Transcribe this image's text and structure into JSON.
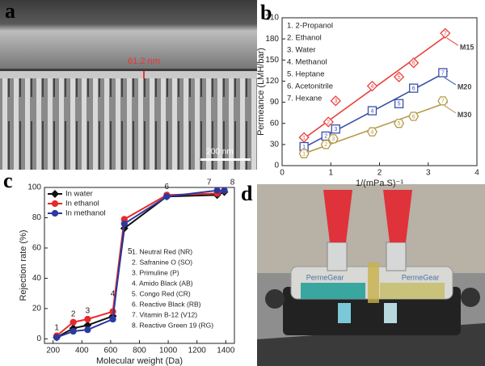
{
  "panel_labels": [
    "a",
    "b",
    "c",
    "d"
  ],
  "sem_image": {
    "thickness_label": "61.2 nm",
    "scale_bar_label": "200 nm"
  },
  "photo": {
    "device_labels": [
      "PermeGear",
      "PermeGear"
    ]
  },
  "chart_data": [
    {
      "type": "scatter",
      "x_label": "1/(mPa.S)⁻¹",
      "y_label": "Permeance (LMH/bar)",
      "xlim": [
        0,
        4
      ],
      "xticks": [
        0,
        1,
        2,
        3,
        4
      ],
      "ylim": [
        0,
        210
      ],
      "yticks": [
        0,
        30,
        60,
        90,
        120,
        150,
        180,
        210
      ],
      "annotations": [
        "1. 2-Propanol",
        "2. Ethanol",
        "3. Water",
        "4. Methanol",
        "5. Heptane",
        "6. Acetonitrile",
        "7. Hexane"
      ],
      "point_labels": [
        "1",
        "2",
        "3",
        "4",
        "5",
        "6",
        "7"
      ],
      "series": [
        {
          "name": "M15",
          "color": "#e8413c",
          "marker": "diamond",
          "x": [
            0.45,
            0.95,
            1.1,
            1.85,
            2.4,
            2.7,
            3.35
          ],
          "values": [
            40,
            62,
            92,
            113,
            126,
            146,
            188
          ],
          "trendline": {
            "x": [
              0.4,
              3.4
            ],
            "y": [
              36,
              186
            ]
          }
        },
        {
          "name": "M20",
          "color": "#3a4fa8",
          "marker": "square",
          "x": [
            0.45,
            0.9,
            1.1,
            1.85,
            2.4,
            2.7,
            3.3
          ],
          "values": [
            27,
            42,
            52,
            78,
            88,
            110,
            132
          ],
          "trendline": {
            "x": [
              0.4,
              3.4
            ],
            "y": [
              24,
              134
            ]
          }
        },
        {
          "name": "M30",
          "color": "#b49a4a",
          "marker": "hexagon",
          "x": [
            0.45,
            0.9,
            1.05,
            1.85,
            2.4,
            2.7,
            3.3
          ],
          "values": [
            17,
            30,
            38,
            48,
            60,
            70,
            92
          ],
          "trendline": {
            "x": [
              0.4,
              3.4
            ],
            "y": [
              16,
              90
            ]
          }
        }
      ]
    },
    {
      "type": "line",
      "x_label": "Molecular weight (Da)",
      "y_label": "Rejection rate (%)",
      "xlim": [
        140,
        1460
      ],
      "xticks": [
        200,
        400,
        600,
        800,
        1000,
        1200,
        1400
      ],
      "ylim": [
        -3,
        100
      ],
      "yticks": [
        0,
        20,
        40,
        60,
        80,
        100
      ],
      "x": [
        225,
        340,
        440,
        615,
        695,
        990,
        1340,
        1390
      ],
      "point_labels": [
        "1",
        "2",
        "3",
        "4",
        "5",
        "6",
        "7",
        "8"
      ],
      "annotations": [
        "1. Neutral Red (NR)",
        "2. Safranine O (SO)",
        "3. Primuline (P)",
        "4. Amido Black (AB)",
        "5. Congo Red (CR)",
        "6. Reactive Black (RB)",
        "7. Vitamin B-12 (V12)",
        "8. Reactive Green 19 (RG)"
      ],
      "series": [
        {
          "name": "In water",
          "color": "#111111",
          "marker": "diamond",
          "values": [
            1,
            7,
            9,
            15,
            73,
            94,
            95,
            97
          ]
        },
        {
          "name": "In ethanol",
          "color": "#e8282b",
          "marker": "circle",
          "values": [
            2,
            11,
            13,
            18,
            79,
            95,
            96,
            98
          ]
        },
        {
          "name": "In methanol",
          "color": "#2b3aa0",
          "marker": "circle",
          "values": [
            1,
            5,
            6,
            13,
            76,
            94,
            98,
            98
          ]
        }
      ]
    }
  ]
}
